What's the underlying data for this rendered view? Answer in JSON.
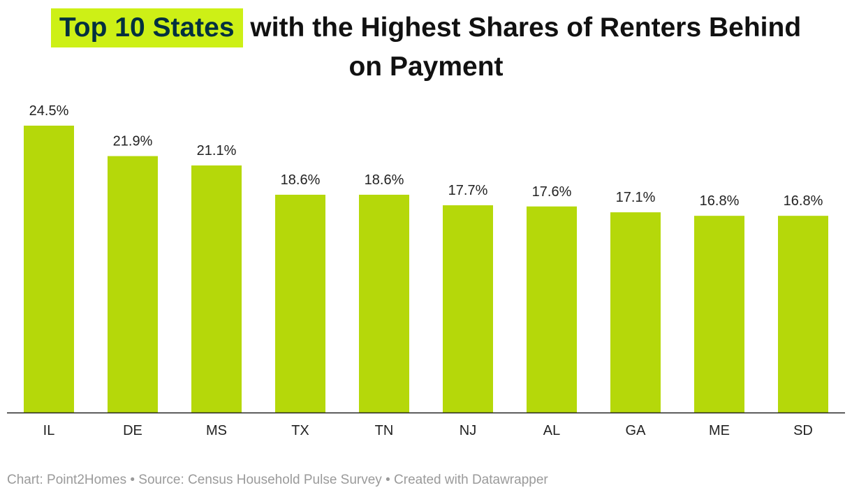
{
  "title": {
    "highlight": "Top 10 States",
    "line1_rest": " with the Highest Shares of Renters Behind",
    "line2": "on Payment"
  },
  "footer": "Chart: Point2Homes • Source: Census Household Pulse Survey • Created with Datawrapper",
  "colors": {
    "bar": "#b5d80a",
    "highlight": "#cdf016",
    "highlight_text": "#01303f"
  },
  "chart_data": {
    "type": "bar",
    "categories": [
      "IL",
      "DE",
      "MS",
      "TX",
      "TN",
      "NJ",
      "AL",
      "GA",
      "ME",
      "SD"
    ],
    "values": [
      24.5,
      21.9,
      21.1,
      18.6,
      18.6,
      17.7,
      17.6,
      17.1,
      16.8,
      16.8
    ],
    "labels": [
      "24.5%",
      "21.9%",
      "21.1%",
      "18.6%",
      "18.6%",
      "17.7%",
      "17.6%",
      "17.1%",
      "16.8%",
      "16.8%"
    ],
    "unit": "%",
    "ylim": [
      0,
      24.5
    ],
    "grid": false,
    "legend": "none"
  }
}
